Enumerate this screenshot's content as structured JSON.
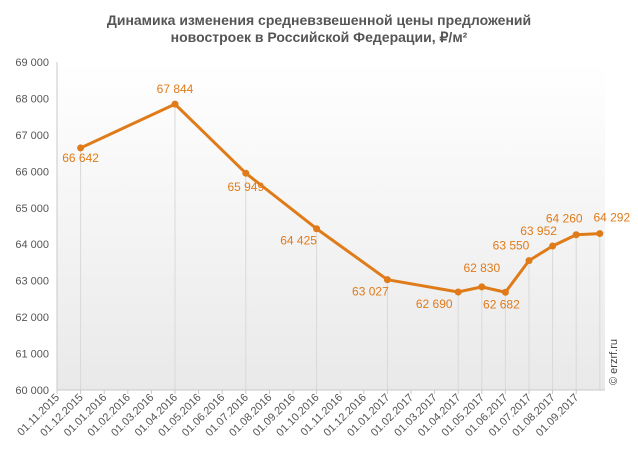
{
  "title_line1": "Динамика  изменения средневзвешенной цены предложений",
  "title_line2": "новостроек в Российской Федерации, ₽/м²",
  "watermark": "© erzrf.ru",
  "colors": {
    "line": "#e07b1a",
    "label": "#e07b1a",
    "axis_text": "#555555",
    "grid": "#d9d9d9",
    "gradient_top": "#ffffff",
    "gradient_bottom": "#e9e9e9"
  },
  "chart_data": {
    "type": "line",
    "title": "Динамика  изменения средневзвешенной цены предложений новостроек в Российской Федерации, ₽/м²",
    "categories": [
      "01.11.2015",
      "01.12.2015",
      "01.01.2016",
      "01.02.2016",
      "01.03.2016",
      "01.04.2016",
      "01.05.2016",
      "01.06.2016",
      "01.07.2016",
      "01.08.2016",
      "01.09.2016",
      "01.10.2016",
      "01.11.2016",
      "01.12.2016",
      "01.01.2017",
      "01.02.2017",
      "01.03.2017",
      "01.04.2017",
      "01.05.2017",
      "01.06.2017",
      "01.07.2017",
      "01.08.2017",
      "01.09.2017"
    ],
    "ytick_labels": [
      "60 000",
      "61 000",
      "62 000",
      "63 000",
      "64 000",
      "65 000",
      "66 000",
      "67 000",
      "68 000",
      "69 000"
    ],
    "ylim": [
      60000,
      69000
    ],
    "grid": "vertical drop lines at data points",
    "series": [
      {
        "points": [
          {
            "x": "01.12.2015",
            "y": 66642,
            "label": "66 642"
          },
          {
            "x": "01.04.2016",
            "y": 67844,
            "label": "67 844"
          },
          {
            "x": "01.07.2016",
            "y": 65949,
            "label": "65 949"
          },
          {
            "x": "01.10.2016",
            "y": 64425,
            "label": "64 425"
          },
          {
            "x": "01.01.2017",
            "y": 63027,
            "label": "63 027"
          },
          {
            "x": "01.04.2017",
            "y": 62690,
            "label": "62 690"
          },
          {
            "x": "01.05.2017",
            "y": 62830,
            "label": "62 830"
          },
          {
            "x": "01.06.2017",
            "y": 62682,
            "label": "62 682"
          },
          {
            "x": "01.07.2017",
            "y": 63550,
            "label": "63 550"
          },
          {
            "x": "01.08.2017",
            "y": 63952,
            "label": "63 952"
          },
          {
            "x": "01.09.2017",
            "y": 64260,
            "label": "64 260"
          },
          {
            "x": "01.10.2017",
            "y": 64292,
            "label": "64 292"
          }
        ]
      }
    ]
  }
}
